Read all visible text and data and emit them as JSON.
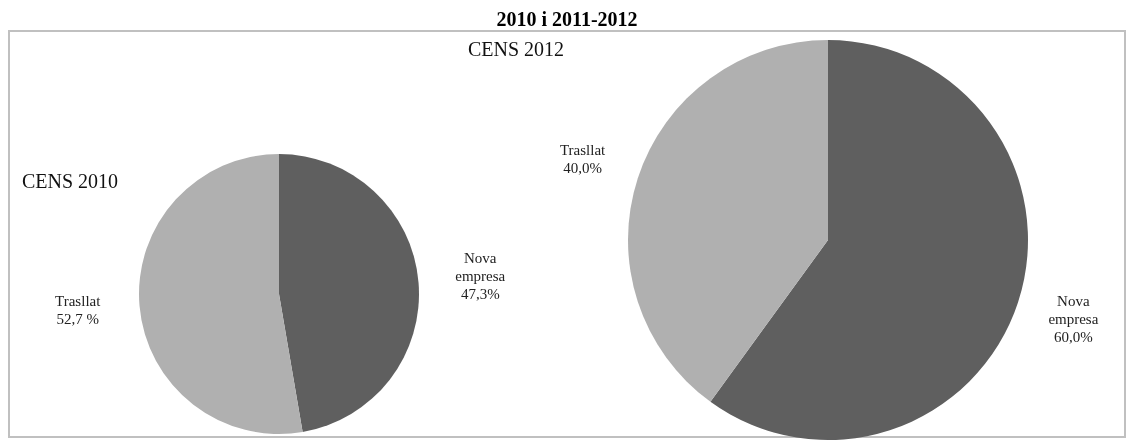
{
  "chart_data": [
    {
      "type": "pie",
      "title": "CENS 2010",
      "annotations": [
        "2010 i 2011-2012"
      ],
      "categories": [
        "Nova empresa",
        "Trasllat"
      ],
      "values": [
        47.3,
        52.7
      ],
      "colors": [
        "#5f5f5f",
        "#b0b0b0"
      ],
      "value_labels": [
        "47,3%",
        "52,7 %"
      ]
    },
    {
      "type": "pie",
      "title": "CENS 2012",
      "categories": [
        "Nova empresa",
        "Trasllat"
      ],
      "values": [
        60.0,
        40.0
      ],
      "colors": [
        "#5f5f5f",
        "#b0b0b0"
      ],
      "value_labels": [
        "60,0%",
        "40,0%"
      ]
    }
  ]
}
